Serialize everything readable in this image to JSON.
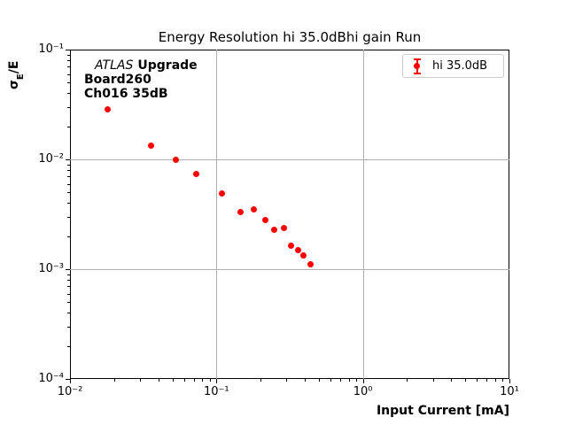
{
  "figure": {
    "title": "Energy Resolution hi 35.0dBhi gain Run",
    "xlabel": "Input Current [mA]",
    "ylabel_sigma": "σ",
    "ylabel_sub": "E",
    "ylabel_rest": "/E"
  },
  "annotation": {
    "line1_italic": "ATLAS",
    "line1_bold": "Upgrade",
    "line2": "Board260",
    "line3": "Ch016 35dB"
  },
  "legend": {
    "label": "hi 35.0dB"
  },
  "colors": {
    "marker": "#ff0000",
    "grid": "#b0b0b0",
    "spine": "#000000",
    "legend_border": "#cccccc"
  },
  "chart_data": {
    "type": "scatter",
    "title": "Energy Resolution hi 35.0dBhi gain Run",
    "xlabel": "Input Current [mA]",
    "ylabel": "σ_E/E",
    "xscale": "log",
    "yscale": "log",
    "xlim": [
      0.01,
      10
    ],
    "ylim": [
      0.0001,
      0.1
    ],
    "grid": true,
    "legend_position": "upper right",
    "x_ticks": [
      {
        "value": 0.01,
        "label": "10⁻²"
      },
      {
        "value": 0.1,
        "label": "10⁻¹"
      },
      {
        "value": 1,
        "label": "10⁰"
      },
      {
        "value": 10,
        "label": "10¹"
      }
    ],
    "y_ticks": [
      {
        "value": 0.1,
        "label": "10⁻¹"
      },
      {
        "value": 0.01,
        "label": "10⁻²"
      },
      {
        "value": 0.001,
        "label": "10⁻³"
      },
      {
        "value": 0.0001,
        "label": "10⁻⁴"
      }
    ],
    "series": [
      {
        "name": "hi 35.0dB",
        "color": "#ff0000",
        "marker": "circle-with-errorbar",
        "x": [
          0.018,
          0.036,
          0.053,
          0.073,
          0.109,
          0.146,
          0.18,
          0.215,
          0.248,
          0.289,
          0.323,
          0.36,
          0.393,
          0.44
        ],
        "y": [
          0.0285,
          0.0133,
          0.01,
          0.0073,
          0.0049,
          0.0033,
          0.0035,
          0.00278,
          0.0023,
          0.00239,
          0.00164,
          0.0015,
          0.00134,
          0.00111
        ]
      }
    ]
  }
}
